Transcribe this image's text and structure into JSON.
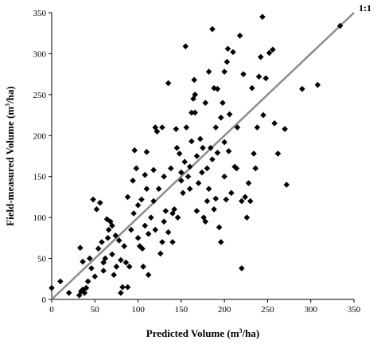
{
  "chart_data": {
    "type": "scatter",
    "xlabel": "Predicted Volume (m3/ha)",
    "ylabel": "Field-measured Volume (m3/ha)",
    "xlim": [
      0,
      350
    ],
    "ylim": [
      0,
      350
    ],
    "xticks": [
      "0",
      "50",
      "100",
      "150",
      "200",
      "250",
      "300",
      "350"
    ],
    "yticks": [
      "0",
      "50",
      "100",
      "150",
      "200",
      "250",
      "300",
      "350"
    ],
    "grid": false,
    "marker": "diamond",
    "marker_color": "#000000",
    "reference_line": {
      "label": "1:1",
      "from": [
        0,
        0
      ],
      "to": [
        350,
        350
      ],
      "color": "#8c8c8c"
    },
    "points": [
      [
        0,
        14
      ],
      [
        10,
        22
      ],
      [
        20,
        8
      ],
      [
        32,
        5
      ],
      [
        34,
        10
      ],
      [
        36,
        12
      ],
      [
        38,
        8
      ],
      [
        40,
        14
      ],
      [
        33,
        63
      ],
      [
        36,
        46
      ],
      [
        42,
        22
      ],
      [
        44,
        50
      ],
      [
        46,
        38
      ],
      [
        48,
        122
      ],
      [
        50,
        28
      ],
      [
        52,
        110
      ],
      [
        54,
        62
      ],
      [
        56,
        118
      ],
      [
        58,
        70
      ],
      [
        60,
        45
      ],
      [
        60,
        35
      ],
      [
        62,
        50
      ],
      [
        64,
        98
      ],
      [
        65,
        75
      ],
      [
        66,
        85
      ],
      [
        68,
        95
      ],
      [
        70,
        90
      ],
      [
        70,
        55
      ],
      [
        72,
        30
      ],
      [
        74,
        78
      ],
      [
        75,
        40
      ],
      [
        78,
        72
      ],
      [
        80,
        8
      ],
      [
        80,
        48
      ],
      [
        82,
        15
      ],
      [
        84,
        65
      ],
      [
        86,
        45
      ],
      [
        88,
        125
      ],
      [
        88,
        15
      ],
      [
        90,
        40
      ],
      [
        92,
        85
      ],
      [
        94,
        145
      ],
      [
        95,
        105
      ],
      [
        96,
        182
      ],
      [
        98,
        160
      ],
      [
        100,
        115
      ],
      [
        100,
        75
      ],
      [
        102,
        65
      ],
      [
        104,
        122
      ],
      [
        105,
        62
      ],
      [
        106,
        40
      ],
      [
        108,
        90
      ],
      [
        108,
        152
      ],
      [
        110,
        180
      ],
      [
        110,
        135
      ],
      [
        112,
        80
      ],
      [
        112,
        30
      ],
      [
        115,
        100
      ],
      [
        118,
        158
      ],
      [
        118,
        120
      ],
      [
        120,
        85
      ],
      [
        120,
        210
      ],
      [
        122,
        205
      ],
      [
        124,
        135
      ],
      [
        126,
        56
      ],
      [
        128,
        210
      ],
      [
        128,
        70
      ],
      [
        130,
        95
      ],
      [
        130,
        150
      ],
      [
        132,
        108
      ],
      [
        135,
        82
      ],
      [
        135,
        264
      ],
      [
        138,
        160
      ],
      [
        140,
        70
      ],
      [
        140,
        105
      ],
      [
        142,
        110
      ],
      [
        144,
        208
      ],
      [
        145,
        185
      ],
      [
        146,
        100
      ],
      [
        148,
        178
      ],
      [
        150,
        155
      ],
      [
        150,
        145
      ],
      [
        152,
        130
      ],
      [
        154,
        168
      ],
      [
        155,
        309
      ],
      [
        156,
        210
      ],
      [
        158,
        150
      ],
      [
        160,
        135
      ],
      [
        160,
        162
      ],
      [
        162,
        193
      ],
      [
        162,
        228
      ],
      [
        164,
        245
      ],
      [
        165,
        268
      ],
      [
        166,
        250
      ],
      [
        168,
        175
      ],
      [
        168,
        108
      ],
      [
        170,
        142
      ],
      [
        172,
        196
      ],
      [
        174,
        155
      ],
      [
        175,
        185
      ],
      [
        176,
        100
      ],
      [
        178,
        95
      ],
      [
        180,
        120
      ],
      [
        180,
        160
      ],
      [
        182,
        135
      ],
      [
        182,
        278
      ],
      [
        184,
        185
      ],
      [
        186,
        171
      ],
      [
        188,
        258
      ],
      [
        188,
        110
      ],
      [
        190,
        210
      ],
      [
        190,
        123
      ],
      [
        192,
        179
      ],
      [
        194,
        88
      ],
      [
        196,
        70
      ],
      [
        196,
        222
      ],
      [
        198,
        240
      ],
      [
        200,
        192
      ],
      [
        200,
        278
      ],
      [
        200,
        150
      ],
      [
        202,
        122
      ],
      [
        203,
        290
      ],
      [
        204,
        306
      ],
      [
        205,
        181
      ],
      [
        206,
        226
      ],
      [
        208,
        130
      ],
      [
        210,
        302
      ],
      [
        212,
        162
      ],
      [
        214,
        160
      ],
      [
        215,
        210
      ],
      [
        218,
        322
      ],
      [
        220,
        120
      ],
      [
        220,
        38
      ],
      [
        222,
        275
      ],
      [
        224,
        125
      ],
      [
        226,
        100
      ],
      [
        228,
        142
      ],
      [
        230,
        120
      ],
      [
        232,
        258
      ],
      [
        234,
        178
      ],
      [
        236,
        160
      ],
      [
        238,
        210
      ],
      [
        240,
        272
      ],
      [
        242,
        296
      ],
      [
        244,
        345
      ],
      [
        245,
        225
      ],
      [
        248,
        270
      ],
      [
        252,
        301
      ],
      [
        256,
        305
      ],
      [
        258,
        215
      ],
      [
        262,
        178
      ],
      [
        270,
        208
      ],
      [
        272,
        140
      ],
      [
        290,
        257
      ],
      [
        308,
        262
      ],
      [
        334,
        334
      ],
      [
        186,
        330
      ],
      [
        192,
        257
      ],
      [
        178,
        240
      ],
      [
        166,
        228
      ]
    ]
  }
}
